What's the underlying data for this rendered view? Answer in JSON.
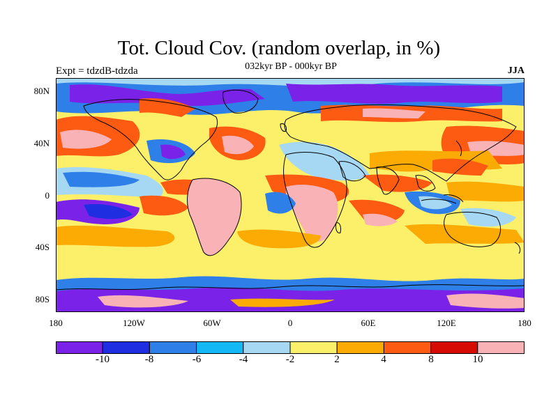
{
  "title": "Tot. Cloud Cov. (random overlap, in %)",
  "subtitle": "032kyr BP - 000kyr BP",
  "experiment": "Expt = tdzdB-tdzda",
  "season": "JJA",
  "lat_ticks": [
    {
      "label": "80N",
      "value": 80
    },
    {
      "label": "40N",
      "value": 40
    },
    {
      "label": "0",
      "value": 0
    },
    {
      "label": "40S",
      "value": -40
    },
    {
      "label": "80S",
      "value": -80
    }
  ],
  "lon_ticks": [
    {
      "label": "180",
      "value": -180
    },
    {
      "label": "120W",
      "value": -120
    },
    {
      "label": "60W",
      "value": -60
    },
    {
      "label": "0",
      "value": 0
    },
    {
      "label": "60E",
      "value": 60
    },
    {
      "label": "120E",
      "value": 120
    },
    {
      "label": "180",
      "value": 180
    }
  ],
  "colorbar": {
    "colors": [
      "#7a22e8",
      "#1e2ee0",
      "#2f7fe8",
      "#14b8f5",
      "#a6d8f4",
      "#fcf06a",
      "#fcab05",
      "#fd5a12",
      "#d60b04",
      "#f9b2b6"
    ],
    "labels": [
      "-10",
      "-8",
      "-6",
      "-4",
      "-2",
      "2",
      "4",
      "8",
      "10"
    ]
  },
  "map_colors": {
    "ocean": "#fcf06a",
    "land_outline": "#000000"
  }
}
